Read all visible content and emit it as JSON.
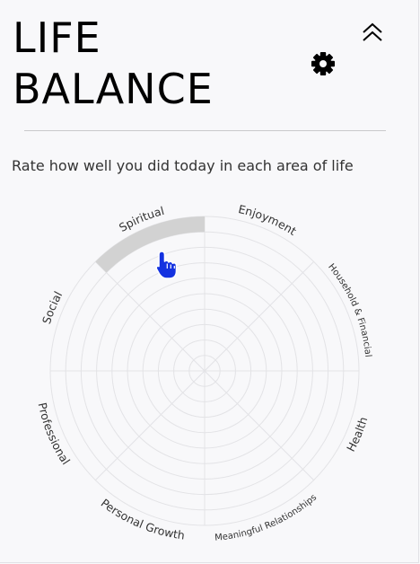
{
  "header": {
    "title_line1": "LIFE",
    "title_line2": "BALANCE",
    "collapse_icon": "double-chevron-up-icon",
    "settings_icon": "gear-icon"
  },
  "prompt": "Rate how well you did today in each area of life",
  "wheel": {
    "scale_max": 10,
    "categories": [
      {
        "label": "Enjoyment",
        "rating": 0
      },
      {
        "label": "Household & Financial",
        "rating": 0
      },
      {
        "label": "Health",
        "rating": 0
      },
      {
        "label": "Meaningful Relationships",
        "rating": 0
      },
      {
        "label": "Personal Growth",
        "rating": 0
      },
      {
        "label": "Professional",
        "rating": 0
      },
      {
        "label": "Social",
        "rating": 0
      },
      {
        "label": "Spiritual",
        "rating": 0
      }
    ],
    "hover": {
      "category": "Spiritual",
      "rating": 10
    },
    "colors": {
      "hover_fill": "#d2d2d2",
      "grid": "#e3e3e6",
      "cursor": "#1432e0"
    }
  },
  "cursor_icon": "hand-pointer-icon"
}
